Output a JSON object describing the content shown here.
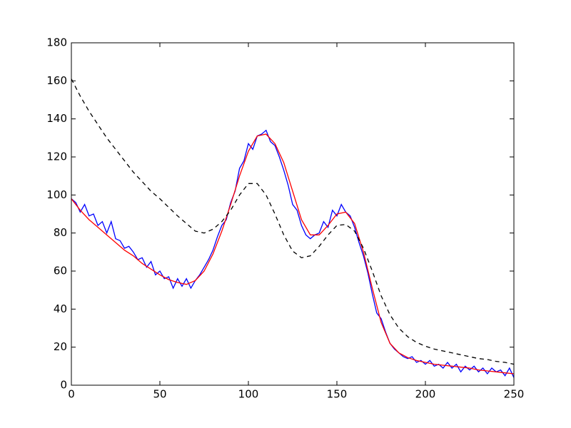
{
  "chart_data": {
    "type": "line",
    "xlim": [
      0,
      250
    ],
    "ylim": [
      0,
      180
    ],
    "xticks": [
      0,
      50,
      100,
      150,
      200,
      250
    ],
    "yticks": [
      0,
      20,
      40,
      60,
      80,
      100,
      120,
      140,
      160,
      180
    ],
    "series": [
      {
        "color": "#0000ff",
        "dash": false,
        "x": [
          0,
          2.5,
          5,
          7.5,
          10,
          12.5,
          15,
          17.5,
          20,
          22.5,
          25,
          27.5,
          30,
          32.5,
          35,
          37.5,
          40,
          42.5,
          45,
          47.5,
          50,
          52.5,
          55,
          57.5,
          60,
          62.5,
          65,
          67.5,
          70,
          72.5,
          75,
          77.5,
          80,
          82.5,
          85,
          87.5,
          90,
          92.5,
          95,
          97.5,
          100,
          102.5,
          105,
          107.5,
          110,
          112.5,
          115,
          117.5,
          120,
          122.5,
          125,
          127.5,
          130,
          132.5,
          135,
          137.5,
          140,
          142.5,
          145,
          147.5,
          150,
          152.5,
          155,
          157.5,
          160,
          162.5,
          165,
          167.5,
          170,
          172.5,
          175,
          177.5,
          180,
          182.5,
          185,
          187.5,
          190,
          192.5,
          195,
          197.5,
          200,
          202.5,
          205,
          207.5,
          210,
          212.5,
          215,
          217.5,
          220,
          222.5,
          225,
          227.5,
          230,
          232.5,
          235,
          237.5,
          240,
          242.5,
          245,
          247.5,
          250
        ],
        "values": [
          98,
          96,
          91,
          95,
          89,
          90,
          84,
          86,
          80,
          86,
          77,
          76,
          72,
          73,
          70,
          66,
          67,
          62,
          65,
          58,
          60,
          56,
          57,
          51,
          56,
          52,
          56,
          51,
          55,
          58,
          62,
          66,
          71,
          78,
          84,
          87,
          96,
          102,
          114,
          118,
          127,
          124,
          131,
          132,
          134,
          128,
          126,
          120,
          113,
          105,
          95,
          92,
          84,
          79,
          77,
          79,
          80,
          86,
          83,
          92,
          89,
          95,
          91,
          89,
          83,
          75,
          68,
          59,
          48,
          38,
          35,
          28,
          22,
          19,
          17,
          15,
          14,
          15,
          12,
          13,
          11,
          13,
          10,
          11,
          9,
          12,
          9,
          11,
          7,
          10,
          8,
          10,
          7,
          9,
          6,
          9,
          7,
          8,
          5,
          9,
          4
        ]
      },
      {
        "color": "#ff0000",
        "dash": false,
        "x": [
          0,
          5,
          10,
          15,
          20,
          25,
          30,
          35,
          40,
          45,
          50,
          55,
          60,
          65,
          70,
          75,
          80,
          85,
          90,
          95,
          100,
          105,
          110,
          115,
          120,
          125,
          130,
          135,
          140,
          145,
          150,
          155,
          160,
          165,
          170,
          175,
          180,
          185,
          190,
          195,
          200,
          205,
          210,
          215,
          220,
          225,
          230,
          235,
          240,
          245,
          250
        ],
        "values": [
          98,
          92,
          87,
          83,
          79,
          75,
          71,
          68,
          64,
          61,
          58,
          55.5,
          54,
          53,
          55,
          60,
          69,
          81,
          95,
          110,
          123,
          131,
          132,
          127,
          117,
          102,
          87,
          79,
          79,
          84,
          90,
          91,
          85,
          70,
          51,
          33,
          22,
          17,
          14.5,
          13,
          12,
          11,
          10.5,
          10,
          9.5,
          9,
          8,
          7.5,
          7,
          6.5,
          6
        ]
      },
      {
        "color": "#000000",
        "dash": true,
        "x": [
          0,
          5,
          10,
          15,
          20,
          25,
          30,
          35,
          40,
          45,
          50,
          55,
          60,
          65,
          70,
          75,
          80,
          85,
          90,
          95,
          100,
          105,
          110,
          115,
          120,
          125,
          130,
          135,
          140,
          145,
          150,
          155,
          160,
          165,
          170,
          175,
          180,
          185,
          190,
          195,
          200,
          205,
          210,
          215,
          220,
          225,
          230,
          235,
          240,
          245,
          250
        ],
        "values": [
          161,
          152,
          144,
          137,
          130,
          124,
          118,
          112,
          107,
          102,
          98,
          93.5,
          89,
          85,
          81,
          80,
          82,
          86,
          92,
          100,
          106,
          106,
          100,
          90,
          79,
          70.5,
          67,
          68,
          73,
          79,
          84,
          84.5,
          81,
          72,
          60,
          47,
          37,
          30,
          25.5,
          22.5,
          20.5,
          19,
          18,
          17,
          16,
          15,
          14,
          13.5,
          12.5,
          12,
          11
        ]
      }
    ]
  }
}
